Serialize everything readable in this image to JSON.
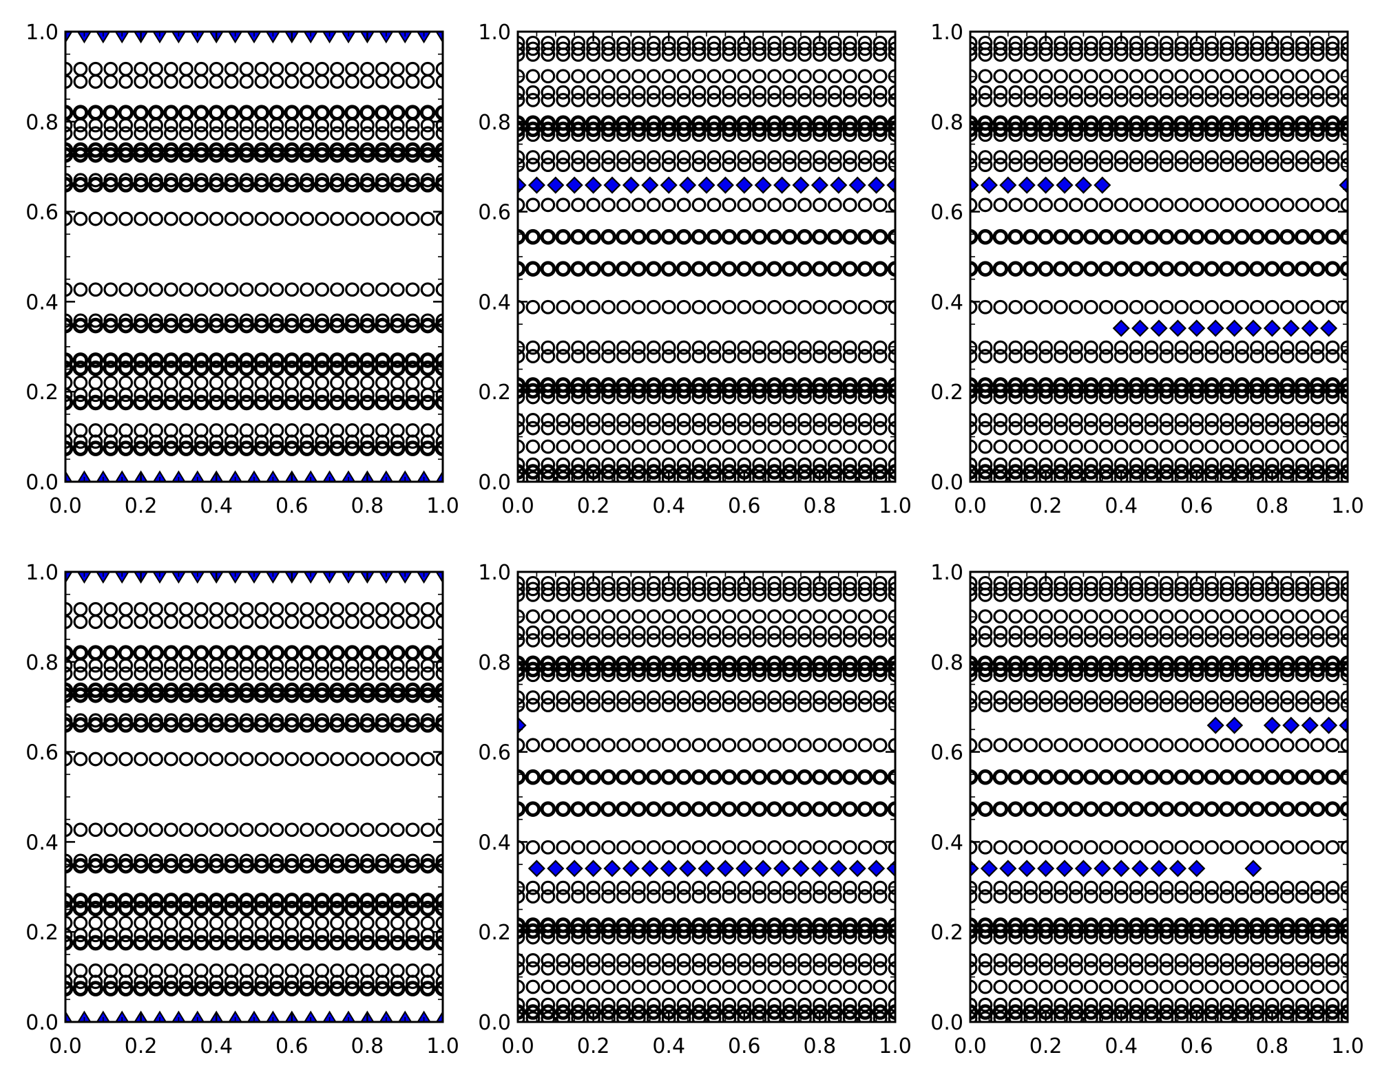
{
  "figure": {
    "background": "#ffffff",
    "axis_color": "#000000",
    "marker_edge_color": "#000000",
    "accent_blue": "#0000ee"
  },
  "axes": {
    "x_tick_labels": [
      "0.0",
      "0.2",
      "0.4",
      "0.6",
      "0.8",
      "1.0"
    ],
    "y_tick_labels": [
      "0.0",
      "0.2",
      "0.4",
      "0.6",
      "0.8",
      "1.0"
    ],
    "x_major_ticks": [
      0.0,
      0.2,
      0.4,
      0.6,
      0.8,
      1.0
    ],
    "y_major_ticks": [
      0.0,
      0.2,
      0.4,
      0.6,
      0.8,
      1.0
    ],
    "minor_tick_step": 0.05,
    "xlim": [
      0,
      1
    ],
    "ylim": [
      0,
      1
    ],
    "grid": false,
    "legend": "none"
  },
  "chart_data": {
    "type": "scatter",
    "layout": {
      "rows": 2,
      "cols": 3
    },
    "marker_types": {
      "circle": "open black circle, 26 per row, x from 0 to 1 step 0.04",
      "diamond": "blue filled diamond with black edge, x step 0.05",
      "triangle": "blue filled triangle with black edge, 21 per row, x step 0.05"
    },
    "circle_x": {
      "start": 0.0,
      "step": 0.04,
      "count": 26
    },
    "triangle_x": {
      "start": 0.0,
      "step": 0.05,
      "count": 21
    },
    "panels": [
      {
        "id": "top-left",
        "row": 0,
        "col": 0,
        "circle_rows": [
          {
            "y": 0.917,
            "w": 1
          },
          {
            "y": 0.889,
            "w": 1
          },
          {
            "y": 0.82,
            "w": 2
          },
          {
            "y": 0.792,
            "w": 1
          },
          {
            "y": 0.774,
            "w": 1
          },
          {
            "y": 0.737,
            "w": 2
          },
          {
            "y": 0.726,
            "w": 2
          },
          {
            "y": 0.67,
            "w": 1
          },
          {
            "y": 0.66,
            "w": 2
          },
          {
            "y": 0.584,
            "w": 1
          },
          {
            "y": 0.427,
            "w": 1
          },
          {
            "y": 0.358,
            "w": 1
          },
          {
            "y": 0.347,
            "w": 2
          },
          {
            "y": 0.27,
            "w": 2
          },
          {
            "y": 0.252,
            "w": 2
          },
          {
            "y": 0.22,
            "w": 1
          },
          {
            "y": 0.193,
            "w": 1
          },
          {
            "y": 0.176,
            "w": 2
          },
          {
            "y": 0.114,
            "w": 1
          },
          {
            "y": 0.089,
            "w": 1
          },
          {
            "y": 0.074,
            "w": 2
          }
        ],
        "diamond_rows": [],
        "triangle_rows": [
          {
            "y": 0.992,
            "dir": "down"
          },
          {
            "y": 0.007,
            "dir": "up"
          }
        ]
      },
      {
        "id": "top-middle",
        "row": 0,
        "col": 1,
        "circle_rows": [
          {
            "y": 0.975,
            "w": 1
          },
          {
            "y": 0.962,
            "w": 1
          },
          {
            "y": 0.949,
            "w": 1
          },
          {
            "y": 0.901,
            "w": 1
          },
          {
            "y": 0.865,
            "w": 1
          },
          {
            "y": 0.848,
            "w": 1
          },
          {
            "y": 0.797,
            "w": 2
          },
          {
            "y": 0.783,
            "w": 2
          },
          {
            "y": 0.771,
            "w": 1
          },
          {
            "y": 0.721,
            "w": 1
          },
          {
            "y": 0.704,
            "w": 1
          },
          {
            "y": 0.615,
            "w": 1
          },
          {
            "y": 0.544,
            "w": 2
          },
          {
            "y": 0.473,
            "w": 2
          },
          {
            "y": 0.388,
            "w": 1
          },
          {
            "y": 0.298,
            "w": 1
          },
          {
            "y": 0.279,
            "w": 1
          },
          {
            "y": 0.215,
            "w": 2
          },
          {
            "y": 0.202,
            "w": 2
          },
          {
            "y": 0.188,
            "w": 1
          },
          {
            "y": 0.137,
            "w": 1
          },
          {
            "y": 0.119,
            "w": 1
          },
          {
            "y": 0.078,
            "w": 1
          },
          {
            "y": 0.038,
            "w": 1
          },
          {
            "y": 0.022,
            "w": 2
          },
          {
            "y": 0.008,
            "w": 1
          }
        ],
        "diamond_rows": [
          {
            "y": 0.659,
            "x": [
              0.0,
              0.05,
              0.1,
              0.15,
              0.2,
              0.25,
              0.3,
              0.35,
              0.4,
              0.45,
              0.5,
              0.55,
              0.6,
              0.65,
              0.7,
              0.75,
              0.8,
              0.85,
              0.9,
              0.95,
              1.0
            ]
          }
        ],
        "triangle_rows": []
      },
      {
        "id": "top-right",
        "row": 0,
        "col": 2,
        "circle_rows": [
          {
            "y": 0.975,
            "w": 1
          },
          {
            "y": 0.962,
            "w": 1
          },
          {
            "y": 0.949,
            "w": 1
          },
          {
            "y": 0.901,
            "w": 1
          },
          {
            "y": 0.865,
            "w": 1
          },
          {
            "y": 0.848,
            "w": 1
          },
          {
            "y": 0.797,
            "w": 2
          },
          {
            "y": 0.783,
            "w": 2
          },
          {
            "y": 0.771,
            "w": 1
          },
          {
            "y": 0.721,
            "w": 1
          },
          {
            "y": 0.704,
            "w": 1
          },
          {
            "y": 0.615,
            "w": 1
          },
          {
            "y": 0.544,
            "w": 2
          },
          {
            "y": 0.473,
            "w": 2
          },
          {
            "y": 0.388,
            "w": 1
          },
          {
            "y": 0.298,
            "w": 1
          },
          {
            "y": 0.279,
            "w": 1
          },
          {
            "y": 0.215,
            "w": 2
          },
          {
            "y": 0.202,
            "w": 2
          },
          {
            "y": 0.188,
            "w": 1
          },
          {
            "y": 0.137,
            "w": 1
          },
          {
            "y": 0.119,
            "w": 1
          },
          {
            "y": 0.078,
            "w": 1
          },
          {
            "y": 0.038,
            "w": 1
          },
          {
            "y": 0.022,
            "w": 2
          },
          {
            "y": 0.008,
            "w": 1
          }
        ],
        "diamond_rows": [
          {
            "y": 0.659,
            "x": [
              0.0,
              0.05,
              0.1,
              0.15,
              0.2,
              0.25,
              0.3,
              0.35,
              1.0
            ]
          },
          {
            "y": 0.341,
            "x": [
              0.4,
              0.45,
              0.5,
              0.55,
              0.6,
              0.65,
              0.7,
              0.75,
              0.8,
              0.85,
              0.9,
              0.95
            ]
          }
        ],
        "triangle_rows": []
      },
      {
        "id": "bottom-left",
        "row": 1,
        "col": 0,
        "circle_rows": [
          {
            "y": 0.917,
            "w": 1
          },
          {
            "y": 0.889,
            "w": 1
          },
          {
            "y": 0.82,
            "w": 2
          },
          {
            "y": 0.792,
            "w": 1
          },
          {
            "y": 0.774,
            "w": 1
          },
          {
            "y": 0.737,
            "w": 2
          },
          {
            "y": 0.726,
            "w": 2
          },
          {
            "y": 0.67,
            "w": 1
          },
          {
            "y": 0.66,
            "w": 2
          },
          {
            "y": 0.584,
            "w": 1
          },
          {
            "y": 0.427,
            "w": 1
          },
          {
            "y": 0.358,
            "w": 1
          },
          {
            "y": 0.347,
            "w": 2
          },
          {
            "y": 0.27,
            "w": 2
          },
          {
            "y": 0.252,
            "w": 2
          },
          {
            "y": 0.22,
            "w": 1
          },
          {
            "y": 0.193,
            "w": 1
          },
          {
            "y": 0.176,
            "w": 2
          },
          {
            "y": 0.114,
            "w": 1
          },
          {
            "y": 0.089,
            "w": 1
          },
          {
            "y": 0.074,
            "w": 2
          }
        ],
        "diamond_rows": [],
        "triangle_rows": [
          {
            "y": 0.992,
            "dir": "down"
          },
          {
            "y": 0.007,
            "dir": "up"
          }
        ]
      },
      {
        "id": "bottom-middle",
        "row": 1,
        "col": 1,
        "circle_rows": [
          {
            "y": 0.975,
            "w": 1
          },
          {
            "y": 0.962,
            "w": 1
          },
          {
            "y": 0.949,
            "w": 1
          },
          {
            "y": 0.901,
            "w": 1
          },
          {
            "y": 0.865,
            "w": 1
          },
          {
            "y": 0.848,
            "w": 1
          },
          {
            "y": 0.797,
            "w": 2
          },
          {
            "y": 0.783,
            "w": 2
          },
          {
            "y": 0.771,
            "w": 1
          },
          {
            "y": 0.721,
            "w": 1
          },
          {
            "y": 0.704,
            "w": 1
          },
          {
            "y": 0.615,
            "w": 1
          },
          {
            "y": 0.544,
            "w": 2
          },
          {
            "y": 0.473,
            "w": 2
          },
          {
            "y": 0.388,
            "w": 1
          },
          {
            "y": 0.298,
            "w": 1
          },
          {
            "y": 0.279,
            "w": 1
          },
          {
            "y": 0.215,
            "w": 2
          },
          {
            "y": 0.202,
            "w": 2
          },
          {
            "y": 0.188,
            "w": 1
          },
          {
            "y": 0.137,
            "w": 1
          },
          {
            "y": 0.119,
            "w": 1
          },
          {
            "y": 0.078,
            "w": 1
          },
          {
            "y": 0.038,
            "w": 1
          },
          {
            "y": 0.022,
            "w": 2
          },
          {
            "y": 0.008,
            "w": 1
          }
        ],
        "diamond_rows": [
          {
            "y": 0.659,
            "x": [
              0.0
            ]
          },
          {
            "y": 0.341,
            "x": [
              0.05,
              0.1,
              0.15,
              0.2,
              0.25,
              0.3,
              0.35,
              0.4,
              0.45,
              0.5,
              0.55,
              0.6,
              0.65,
              0.7,
              0.75,
              0.8,
              0.85,
              0.9,
              0.95,
              1.0
            ]
          }
        ],
        "triangle_rows": []
      },
      {
        "id": "bottom-right",
        "row": 1,
        "col": 2,
        "circle_rows": [
          {
            "y": 0.975,
            "w": 1
          },
          {
            "y": 0.962,
            "w": 1
          },
          {
            "y": 0.949,
            "w": 1
          },
          {
            "y": 0.901,
            "w": 1
          },
          {
            "y": 0.865,
            "w": 1
          },
          {
            "y": 0.848,
            "w": 1
          },
          {
            "y": 0.797,
            "w": 2
          },
          {
            "y": 0.783,
            "w": 2
          },
          {
            "y": 0.771,
            "w": 1
          },
          {
            "y": 0.721,
            "w": 1
          },
          {
            "y": 0.704,
            "w": 1
          },
          {
            "y": 0.615,
            "w": 1
          },
          {
            "y": 0.544,
            "w": 2
          },
          {
            "y": 0.473,
            "w": 2
          },
          {
            "y": 0.388,
            "w": 1
          },
          {
            "y": 0.298,
            "w": 1
          },
          {
            "y": 0.279,
            "w": 1
          },
          {
            "y": 0.215,
            "w": 2
          },
          {
            "y": 0.202,
            "w": 2
          },
          {
            "y": 0.188,
            "w": 1
          },
          {
            "y": 0.137,
            "w": 1
          },
          {
            "y": 0.119,
            "w": 1
          },
          {
            "y": 0.078,
            "w": 1
          },
          {
            "y": 0.038,
            "w": 1
          },
          {
            "y": 0.022,
            "w": 2
          },
          {
            "y": 0.008,
            "w": 1
          }
        ],
        "diamond_rows": [
          {
            "y": 0.659,
            "x": [
              0.65,
              0.7,
              0.8,
              0.85,
              0.9,
              0.95,
              1.0
            ]
          },
          {
            "y": 0.341,
            "x": [
              0.0,
              0.05,
              0.1,
              0.15,
              0.2,
              0.25,
              0.3,
              0.35,
              0.4,
              0.45,
              0.5,
              0.55,
              0.6,
              0.75
            ]
          }
        ],
        "triangle_rows": []
      }
    ]
  }
}
